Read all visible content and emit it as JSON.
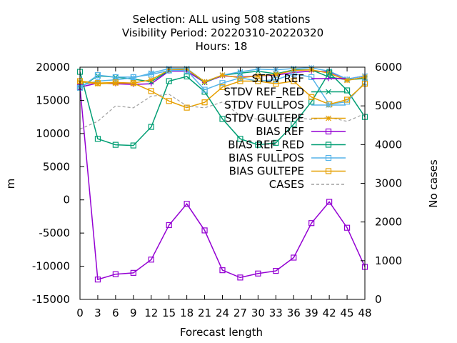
{
  "title": {
    "line1": "Selection: ALL using   508 stations",
    "line2": "Visibility   Period: 20220310-20220320",
    "line3": "Hours:  18"
  },
  "chart_data": {
    "type": "line",
    "xlabel": "Forecast length",
    "ylabel": "m",
    "y2label": "No cases",
    "x": [
      0,
      3,
      6,
      9,
      12,
      15,
      18,
      21,
      24,
      27,
      30,
      33,
      36,
      39,
      42,
      45,
      48
    ],
    "xlim": [
      0,
      48
    ],
    "ylim": [
      -15000,
      20000
    ],
    "y2lim": [
      0,
      6000
    ],
    "yticks": [
      -15000,
      -10000,
      -5000,
      0,
      5000,
      10000,
      15000,
      20000
    ],
    "y2ticks": [
      0,
      1000,
      2000,
      3000,
      4000,
      5000,
      6000
    ],
    "grid": false,
    "legend_position": "top-right",
    "series": [
      {
        "name": "STDV REF",
        "axis": "y",
        "color": "#9400d3",
        "marker": "plus",
        "dash": "solid",
        "values": [
          17000,
          17600,
          17500,
          17400,
          17500,
          19400,
          19400,
          17700,
          18700,
          18500,
          18700,
          18800,
          19200,
          19400,
          19300,
          18200,
          18700
        ]
      },
      {
        "name": "STDV REF_RED",
        "axis": "y",
        "color": "#009e73",
        "marker": "x",
        "dash": "solid",
        "values": [
          16900,
          18700,
          18500,
          18200,
          17800,
          19500,
          19700,
          17700,
          18800,
          19100,
          19400,
          19000,
          19600,
          19600,
          18500,
          18100,
          18300
        ]
      },
      {
        "name": "STDV FULLPOS",
        "axis": "y",
        "color": "#56b4e9",
        "marker": "star",
        "dash": "solid",
        "values": [
          17200,
          17900,
          18100,
          18400,
          19100,
          19800,
          19800,
          17800,
          18800,
          19300,
          19700,
          19600,
          19800,
          19900,
          19400,
          18200,
          18700
        ]
      },
      {
        "name": "STDV GULTEPE",
        "axis": "y",
        "color": "#e69f00",
        "marker": "star",
        "dash": "solid",
        "values": [
          17800,
          17500,
          17600,
          17600,
          18100,
          19600,
          19700,
          17800,
          18800,
          18400,
          18700,
          18900,
          19500,
          19600,
          19100,
          18000,
          18500
        ]
      },
      {
        "name": "BIAS REF",
        "axis": "y",
        "color": "#9400d3",
        "marker": "square",
        "dash": "solid",
        "values": [
          17000,
          -12000,
          -11200,
          -11000,
          -9000,
          -3800,
          -600,
          -4600,
          -10600,
          -11700,
          -11100,
          -10700,
          -8700,
          -3500,
          -300,
          -4200,
          -10100
        ]
      },
      {
        "name": "BIAS REF_RED",
        "axis": "y",
        "color": "#009e73",
        "marker": "square",
        "dash": "solid",
        "values": [
          19300,
          9200,
          8300,
          8200,
          11000,
          17900,
          18600,
          16300,
          12200,
          9200,
          8300,
          8600,
          11400,
          14800,
          19200,
          16500,
          12500
        ]
      },
      {
        "name": "BIAS FULLPOS",
        "axis": "y",
        "color": "#56b4e9",
        "marker": "square",
        "dash": "solid",
        "values": [
          16900,
          18800,
          18500,
          18500,
          18900,
          19500,
          19500,
          16600,
          17600,
          18400,
          17900,
          18100,
          19000,
          18500,
          14400,
          14800,
          17700
        ]
      },
      {
        "name": "BIAS GULTEPE",
        "axis": "y",
        "color": "#e69f00",
        "marker": "square",
        "dash": "solid",
        "values": [
          17900,
          17600,
          17700,
          17600,
          16400,
          14900,
          13900,
          14700,
          17000,
          17900,
          17900,
          17500,
          17900,
          15500,
          14400,
          15100,
          17500
        ]
      },
      {
        "name": "CASES",
        "axis": "y2",
        "color": "#a0a0a0",
        "marker": "none",
        "dash": "dashed",
        "values": [
          4400,
          4600,
          5000,
          4950,
          5250,
          5300,
          5000,
          4950,
          5100,
          4750,
          4650,
          4650,
          4700,
          4650,
          4700,
          4600,
          4800
        ]
      }
    ]
  },
  "legend": [
    {
      "label": "STDV REF",
      "color": "#9400d3",
      "marker": "plus"
    },
    {
      "label": "STDV REF_RED",
      "color": "#009e73",
      "marker": "x"
    },
    {
      "label": "STDV FULLPOS",
      "color": "#56b4e9",
      "marker": "star"
    },
    {
      "label": "STDV GULTEPE",
      "color": "#e69f00",
      "marker": "star"
    },
    {
      "label": "BIAS REF",
      "color": "#9400d3",
      "marker": "square"
    },
    {
      "label": "BIAS REF_RED",
      "color": "#009e73",
      "marker": "square"
    },
    {
      "label": "BIAS FULLPOS",
      "color": "#56b4e9",
      "marker": "square"
    },
    {
      "label": "BIAS GULTEPE",
      "color": "#e69f00",
      "marker": "square"
    },
    {
      "label": "CASES",
      "color": "#a0a0a0",
      "marker": "none"
    }
  ]
}
